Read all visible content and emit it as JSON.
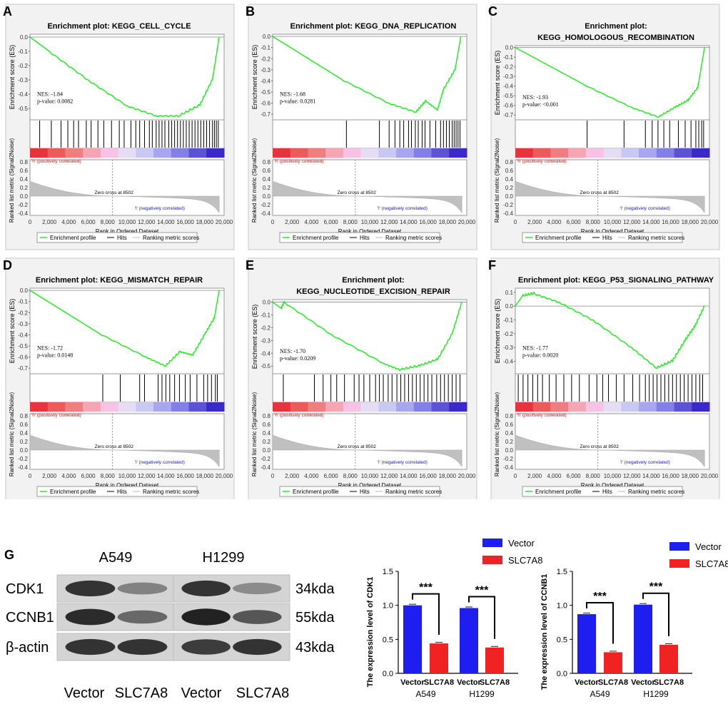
{
  "colors": {
    "es_line": "#22ee22",
    "vector_bar": "#1e1ef0",
    "slc7a8_bar": "#f02222",
    "heat_red": "#e8323c",
    "heat_blue": "#3a28c8",
    "panel_bg": "#f2f2f2",
    "pos_text": "#d02020",
    "neg_text": "#2020c0"
  },
  "common": {
    "es_ylabel": "Enrichment score (ES)",
    "rank_ylabel": "Ranked list metric (Signal2Noise)",
    "xlabel": "Rank in Ordered Dataset",
    "pos_text": "'h' (positively correlated)",
    "neg_text": "'l' (negatively correlated)",
    "zero_cross": "Zero cross at 8502",
    "legend": [
      "Enrichment profile",
      "Hits",
      "Ranking metric scores"
    ],
    "xticks": [
      "0",
      "2,000",
      "4,000",
      "6,000",
      "8,000",
      "10,000",
      "12,000",
      "14,000",
      "16,000",
      "18,000",
      "20,000"
    ],
    "rank_ticks": [
      "0.8",
      "0.6",
      "0.4",
      "0.2",
      "0.0",
      "-0.2",
      "-0.4"
    ]
  },
  "chart_data": [
    {
      "type": "line",
      "panel": "A",
      "title": [
        "Enrichment plot: KEGG_CELL_CYCLE"
      ],
      "nes": "NES: -1.84",
      "pval": "p-value: 0.0082",
      "ylim": [
        -0.58,
        0.02
      ],
      "yticks": [
        "0.0",
        "-0.1",
        "-0.2",
        "-0.3",
        "-0.4",
        "-0.5"
      ],
      "profile": [
        [
          0,
          0.0
        ],
        [
          2000,
          -0.1
        ],
        [
          6000,
          -0.3
        ],
        [
          10000,
          -0.48
        ],
        [
          13000,
          -0.55
        ],
        [
          15500,
          -0.55
        ],
        [
          17500,
          -0.48
        ],
        [
          18800,
          -0.3
        ],
        [
          19500,
          0.0
        ]
      ],
      "hits": [
        1000,
        2200,
        3200,
        3900,
        4500,
        5000,
        5800,
        6300,
        7000,
        7600,
        8400,
        9200,
        9700,
        10400,
        10900,
        11300,
        11800,
        12300,
        12600,
        13000,
        13300,
        13600,
        13900,
        14300,
        14600,
        14900,
        15200,
        15500,
        15800,
        16100,
        16400,
        16700,
        17000,
        17300,
        17600,
        17900,
        18200,
        18500,
        18800,
        19000,
        19200,
        19400
      ]
    },
    {
      "type": "line",
      "panel": "B",
      "title": [
        "Enrichment plot: KEGG_DNA_REPLICATION"
      ],
      "nes": "NES: -1.68",
      "pval": "p-value: 0.0281",
      "ylim": [
        -0.75,
        0.02
      ],
      "yticks": [
        "0.0",
        "-0.1",
        "-0.2",
        "-0.3",
        "-0.4",
        "-0.5",
        "-0.6",
        "-0.7"
      ],
      "profile": [
        [
          0,
          0.0
        ],
        [
          7000,
          -0.38
        ],
        [
          12000,
          -0.6
        ],
        [
          14800,
          -0.68
        ],
        [
          15800,
          -0.58
        ],
        [
          17000,
          -0.66
        ],
        [
          17600,
          -0.48
        ],
        [
          18800,
          -0.3
        ],
        [
          19400,
          0.0
        ]
      ],
      "hits": [
        7600,
        11000,
        12000,
        12600,
        13100,
        13500,
        14000,
        14300,
        14700,
        15000,
        15400,
        15700,
        16200,
        16800,
        17300,
        17600,
        17900,
        18200,
        18500,
        18700,
        18900,
        19100,
        19300
      ]
    },
    {
      "type": "line",
      "panel": "C",
      "title": [
        "Enrichment plot:",
        "KEGG_HOMOLOGOUS_RECOMBINATION"
      ],
      "nes": "NES: -1.93",
      "pval": "p-value: <0.001",
      "ylim": [
        -0.75,
        0.02
      ],
      "yticks": [
        "0.0",
        "-0.1",
        "-0.2",
        "-0.3",
        "-0.4",
        "-0.5",
        "-0.6",
        "-0.7"
      ],
      "profile": [
        [
          0,
          0.0
        ],
        [
          7000,
          -0.38
        ],
        [
          12000,
          -0.62
        ],
        [
          14800,
          -0.72
        ],
        [
          16500,
          -0.62
        ],
        [
          17800,
          -0.55
        ],
        [
          18800,
          -0.42
        ],
        [
          19500,
          0.0
        ]
      ],
      "hits": [
        7400,
        11200,
        13400,
        14100,
        14700,
        15300,
        15900,
        16800,
        17500,
        18100,
        18600,
        18900,
        19200,
        19400
      ]
    },
    {
      "type": "line",
      "panel": "D",
      "title": [
        "Enrichment plot: KEGG_MISMATCH_REPAIR"
      ],
      "nes": "NES: -1.72",
      "pval": "p-value: 0.0148",
      "ylim": [
        -0.75,
        0.02
      ],
      "yticks": [
        "0.0",
        "-0.1",
        "-0.2",
        "-0.3",
        "-0.4",
        "-0.5",
        "-0.6",
        "-0.7"
      ],
      "profile": [
        [
          0,
          0.0
        ],
        [
          7000,
          -0.38
        ],
        [
          12000,
          -0.6
        ],
        [
          14000,
          -0.68
        ],
        [
          15500,
          -0.55
        ],
        [
          16800,
          -0.58
        ],
        [
          18000,
          -0.4
        ],
        [
          19000,
          -0.25
        ],
        [
          19500,
          0.0
        ]
      ],
      "hits": [
        7500,
        9300,
        11300,
        11800,
        13200,
        13600,
        14000,
        14400,
        14900,
        15400,
        16000,
        16500,
        17200,
        17900,
        18300,
        18700,
        19100,
        19300
      ]
    },
    {
      "type": "line",
      "panel": "E",
      "title": [
        "Enrichment plot:",
        "KEGG_NUCLEOTIDE_EXCISION_REPAIR"
      ],
      "nes": "NES: -1.70",
      "pval": "p-value: 0.0209",
      "ylim": [
        -0.56,
        0.02
      ],
      "yticks": [
        "0.0",
        "-0.1",
        "-0.2",
        "-0.3",
        "-0.4",
        "-0.5"
      ],
      "profile": [
        [
          0,
          0.0
        ],
        [
          900,
          -0.05
        ],
        [
          1200,
          0.0
        ],
        [
          6000,
          -0.25
        ],
        [
          11500,
          -0.48
        ],
        [
          13200,
          -0.53
        ],
        [
          15200,
          -0.5
        ],
        [
          17000,
          -0.45
        ],
        [
          18500,
          -0.25
        ],
        [
          19500,
          0.0
        ]
      ],
      "hits": [
        1100,
        4300,
        5200,
        6000,
        6600,
        7400,
        8400,
        8900,
        9400,
        10000,
        10600,
        11000,
        11400,
        11900,
        12300,
        12800,
        13200,
        13600,
        14000,
        14400,
        14800,
        15200,
        15600,
        16000,
        16400,
        16900,
        17300,
        17700,
        18100,
        18500,
        18900,
        19300
      ]
    },
    {
      "type": "line",
      "panel": "F",
      "title": [
        "Enrichment plot: KEGG_P53_SIGNALING_PATHWAY"
      ],
      "nes": "NES: -1.77",
      "pval": "p-value: 0.0020",
      "ylim": [
        -0.49,
        0.13
      ],
      "yticks": [
        "0.1",
        "0.0",
        "-0.1",
        "-0.2",
        "-0.3",
        "-0.4"
      ],
      "profile": [
        [
          0,
          0.0
        ],
        [
          700,
          0.07
        ],
        [
          2000,
          0.09
        ],
        [
          4500,
          0.03
        ],
        [
          8000,
          -0.1
        ],
        [
          12000,
          -0.3
        ],
        [
          14600,
          -0.45
        ],
        [
          16200,
          -0.4
        ],
        [
          17500,
          -0.25
        ],
        [
          18500,
          -0.15
        ],
        [
          19500,
          0.0
        ]
      ],
      "hits": [
        300,
        800,
        1300,
        1800,
        2300,
        2800,
        3500,
        4200,
        5000,
        5800,
        6600,
        7600,
        8400,
        9000,
        9600,
        10400,
        11200,
        12100,
        12800,
        13400,
        13800,
        14200,
        14600,
        15000,
        15400,
        15800,
        16200,
        16600,
        17000,
        17400,
        17800,
        18200,
        18600,
        19000,
        19300
      ]
    },
    {
      "type": "bar",
      "panel": "G-CDK1",
      "ylabel": "The expression level of CDK1",
      "ylim": [
        0,
        1.5
      ],
      "yticks": [
        "0.0",
        "0.5",
        "1.0",
        "1.5"
      ],
      "categories": [
        "A549",
        "H1299"
      ],
      "series": [
        {
          "name": "Vector",
          "values": [
            1.0,
            0.96
          ]
        },
        {
          "name": "SLC7A8",
          "values": [
            0.44,
            0.38
          ]
        }
      ],
      "xticks": [
        "Vector",
        "SLC7A8",
        "Vector",
        "SLC7A8"
      ],
      "significance": [
        "***",
        "***"
      ]
    },
    {
      "type": "bar",
      "panel": "G-CCNB1",
      "ylabel": "The expression level of CCNB1",
      "ylim": [
        0,
        1.5
      ],
      "yticks": [
        "0.0",
        "0.5",
        "1.0",
        "1.5"
      ],
      "categories": [
        "A549",
        "H1299"
      ],
      "series": [
        {
          "name": "Vector",
          "values": [
            0.87,
            1.01
          ]
        },
        {
          "name": "SLC7A8",
          "values": [
            0.31,
            0.42
          ]
        }
      ],
      "xticks": [
        "Vector",
        "SLC7A8",
        "Vector",
        "SLC7A8"
      ],
      "significance": [
        "***",
        "***"
      ]
    }
  ],
  "western_blot": {
    "panel": "G",
    "cell_lines": [
      "A549",
      "H1299"
    ],
    "proteins": [
      "CDK1",
      "CCNB1",
      "β-actin"
    ],
    "sizes": [
      "34kda",
      "55kda",
      "43kda"
    ],
    "lanes": [
      "Vector",
      "SLC7A8",
      "Vector",
      "SLC7A8"
    ],
    "band_intensity": [
      [
        0.85,
        0.4,
        0.85,
        0.35
      ],
      [
        0.9,
        0.55,
        0.95,
        0.65
      ],
      [
        0.85,
        0.85,
        0.8,
        0.85
      ]
    ]
  }
}
